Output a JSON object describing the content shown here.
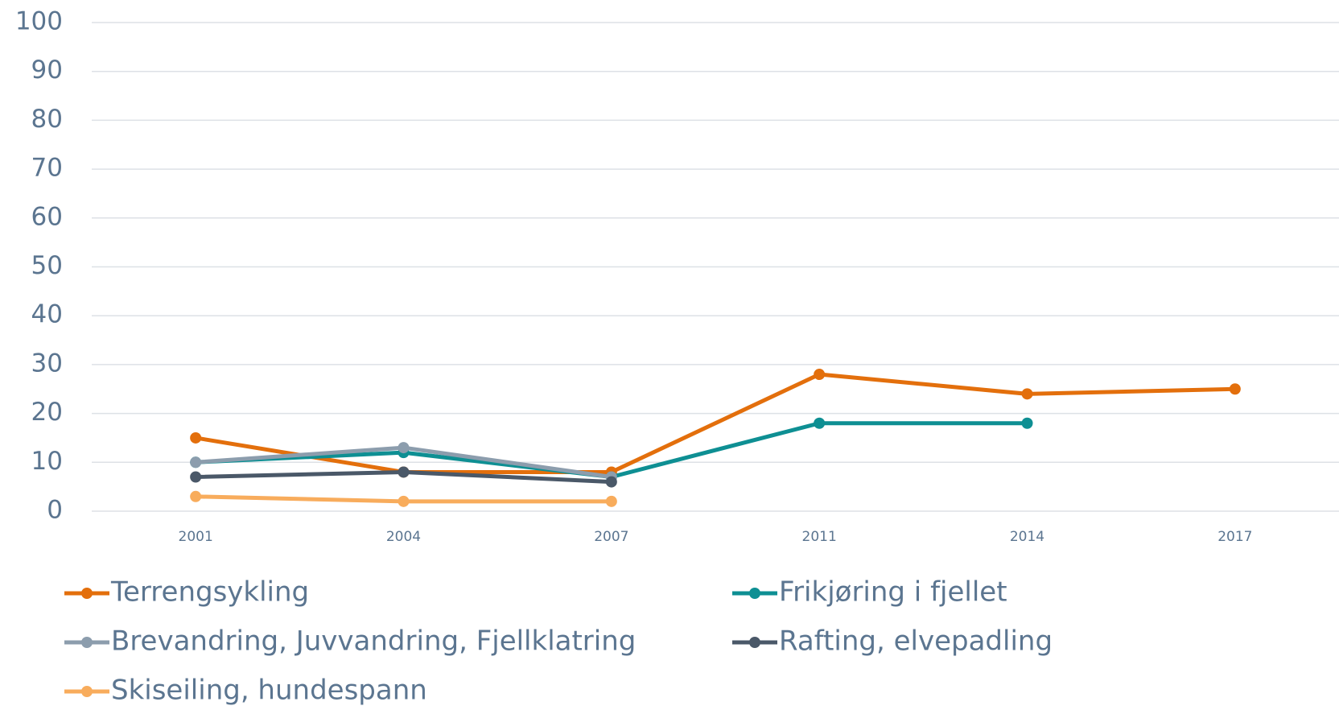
{
  "chart_data": {
    "type": "line",
    "categories": [
      "2001",
      "2004",
      "2007",
      "2011",
      "2014",
      "2017"
    ],
    "series": [
      {
        "name": "Terrengsykling",
        "color": "#e36f0c",
        "values": [
          15,
          8,
          8,
          28,
          24,
          25
        ]
      },
      {
        "name": "Frikjøring i fjellet",
        "color": "#0e8f93",
        "values": [
          10,
          12,
          7,
          18,
          18,
          null
        ]
      },
      {
        "name": "Brevandring, Juvvandring, Fjellklatring",
        "color": "#8c9dad",
        "values": [
          10,
          13,
          7,
          null,
          null,
          null
        ]
      },
      {
        "name": "Rafting, elvepadling",
        "color": "#4a5868",
        "values": [
          7,
          8,
          6,
          null,
          null,
          null
        ]
      },
      {
        "name": "Skiseiling, hundespann",
        "color": "#f8ac5c",
        "values": [
          3,
          2,
          2,
          null,
          null,
          null
        ]
      }
    ],
    "ylim": [
      0,
      100
    ],
    "yticks": [
      0,
      10,
      20,
      30,
      40,
      50,
      60,
      70,
      80,
      90,
      100
    ],
    "grid": true,
    "legend": "bottom"
  }
}
